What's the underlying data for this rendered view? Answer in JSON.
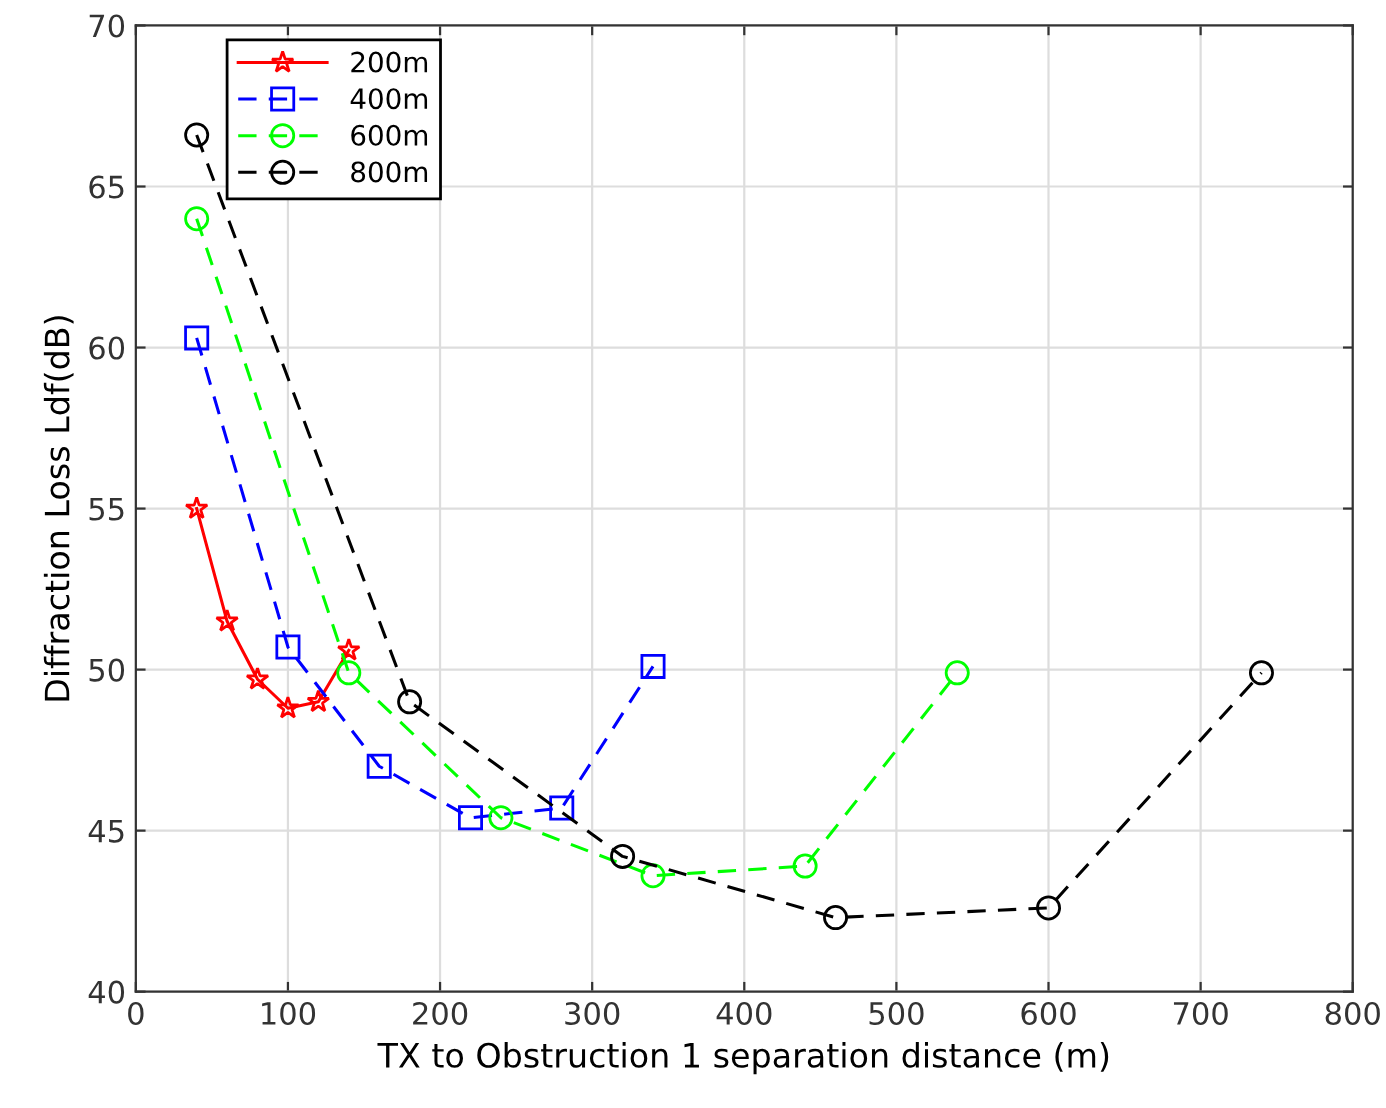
{
  "chart_data": {
    "type": "line",
    "xlabel": "TX to Obstruction 1 separation distance (m)",
    "ylabel": "Diffraction Loss Ldf(dB)",
    "xlim": [
      0,
      800
    ],
    "xticks": [
      0,
      100,
      200,
      300,
      400,
      500,
      600,
      700,
      800
    ],
    "ylim": [
      40,
      70
    ],
    "yticks": [
      40,
      45,
      50,
      55,
      60,
      65,
      70
    ],
    "grid": true,
    "legend": "top left",
    "series": [
      {
        "name": "200m",
        "color": "#ff0000",
        "marker": "star",
        "line_style": "solid",
        "x": [
          40,
          60,
          80,
          100,
          120,
          140
        ],
        "values": [
          55.0,
          51.5,
          49.7,
          48.8,
          49.0,
          50.6
        ]
      },
      {
        "name": "400m",
        "color": "#0000ff",
        "marker": "square",
        "line_style": "dashed",
        "x": [
          40,
          100,
          160,
          220,
          280,
          340
        ],
        "values": [
          60.3,
          50.7,
          47.0,
          45.4,
          45.7,
          50.1
        ]
      },
      {
        "name": "600m",
        "color": "#00ff00",
        "marker": "circle",
        "line_style": "dashed",
        "x": [
          40,
          140,
          240,
          340,
          440,
          540
        ],
        "values": [
          64.0,
          49.9,
          45.4,
          43.6,
          43.9,
          49.9
        ]
      },
      {
        "name": "800m",
        "color": "#000000",
        "marker": "circle",
        "line_style": "dashed",
        "x": [
          40,
          180,
          320,
          460,
          600,
          740
        ],
        "values": [
          66.6,
          49.0,
          44.2,
          42.3,
          42.6,
          49.9
        ]
      }
    ]
  }
}
